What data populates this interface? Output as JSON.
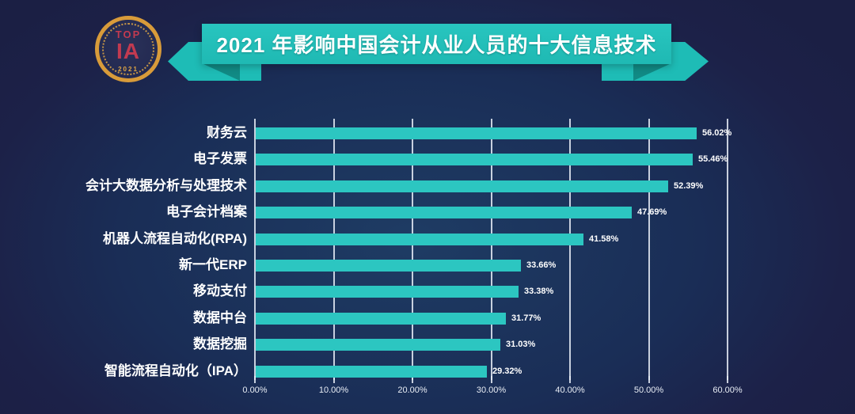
{
  "page": {
    "background_edge": "#1b1f44",
    "background_center": "#1e3c64"
  },
  "logo": {
    "top_text": "TOP",
    "monogram": "IA",
    "year": "2021",
    "ring_color": "#d89b3a",
    "letter_color": "#c23a50"
  },
  "banner": {
    "title": "2021 年影响中国会计从业人员的十大信息技术",
    "panel_color": "#28c5bf",
    "tail_color": "#1ebcb6",
    "fold_color": "#118a85",
    "text_color": "#ffffff"
  },
  "chart_data": {
    "type": "bar",
    "orientation": "horizontal",
    "title": "2021 年影响中国会计从业人员的十大信息技术",
    "categories": [
      "财务云",
      "电子发票",
      "会计大数据分析与处理技术",
      "电子会计档案",
      "机器人流程自动化(RPA)",
      "新一代ERP",
      "移动支付",
      "数据中台",
      "数据挖掘",
      "智能流程自动化（IPA）"
    ],
    "values": [
      56.02,
      55.46,
      52.39,
      47.69,
      41.58,
      33.66,
      33.38,
      31.77,
      31.03,
      29.32
    ],
    "value_labels": [
      "56.02%",
      "55.46%",
      "52.39%",
      "47.69%",
      "41.58%",
      "33.66%",
      "33.38%",
      "31.77%",
      "31.03%",
      "29.32%"
    ],
    "x_tick_labels": [
      "0.00%",
      "10.00%",
      "20.00%",
      "30.00%",
      "40.00%",
      "50.00%",
      "60.00%"
    ],
    "xlim": [
      0,
      60
    ],
    "grid": true,
    "legend": false,
    "bar_color": "#2cc6c1",
    "gridline_color": "rgba(230,236,246,0.85)",
    "label_color": "#ffffff"
  }
}
